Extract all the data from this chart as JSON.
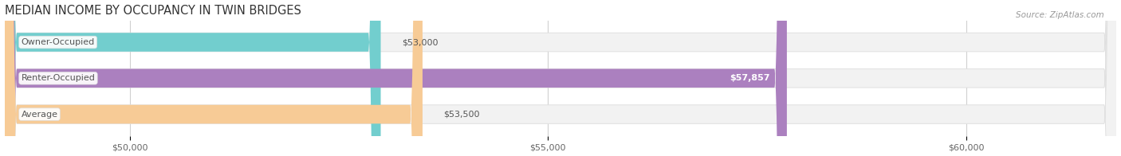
{
  "title": "MEDIAN INCOME BY OCCUPANCY IN TWIN BRIDGES",
  "source": "Source: ZipAtlas.com",
  "categories": [
    "Owner-Occupied",
    "Renter-Occupied",
    "Average"
  ],
  "values": [
    53000,
    57857,
    53500
  ],
  "bar_colors": [
    "#72cece",
    "#ab80bf",
    "#f7cb96"
  ],
  "bar_labels": [
    "$53,000",
    "$57,857",
    "$53,500"
  ],
  "label_inside": [
    false,
    true,
    false
  ],
  "xmin": 48500,
  "xmax": 61800,
  "xticks": [
    50000,
    55000,
    60000
  ],
  "xtick_labels": [
    "$50,000",
    "$55,000",
    "$60,000"
  ],
  "track_color": "#f2f2f2",
  "track_edge_color": "#e0e0e0",
  "bar_height": 0.52,
  "title_fontsize": 10.5,
  "label_fontsize": 8.0,
  "tick_fontsize": 8.0,
  "source_fontsize": 7.5,
  "cat_label_color": "#555555",
  "cat_label_bg": "#ffffff"
}
